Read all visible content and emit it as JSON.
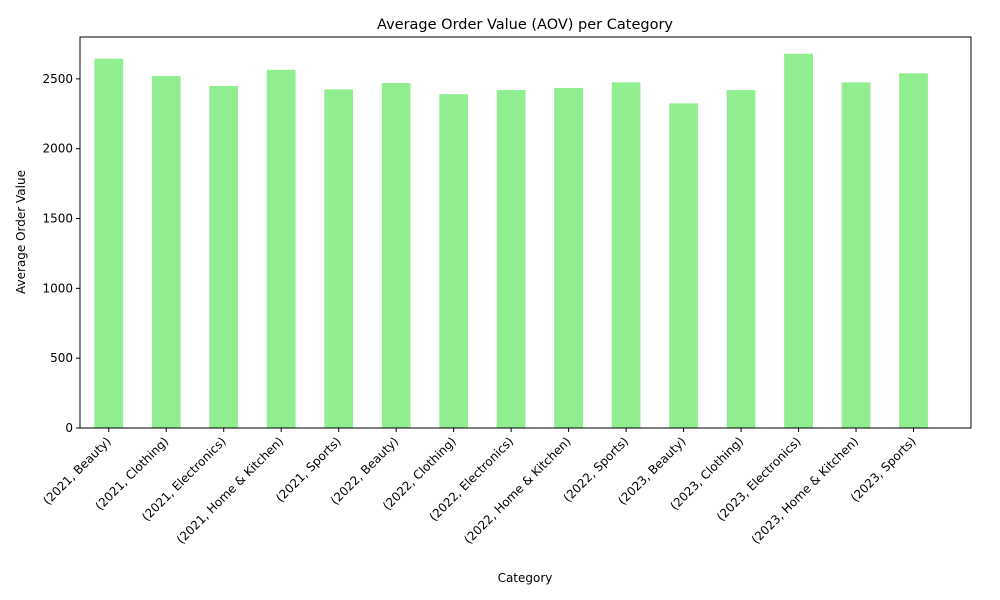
{
  "chart_data": {
    "type": "bar",
    "title": "Average Order Value (AOV) per Category",
    "xlabel": "Category",
    "ylabel": "Average Order Value",
    "categories": [
      "(2021, Beauty)",
      "(2021, Clothing)",
      "(2021, Electronics)",
      "(2021, Home & Kitchen)",
      "(2021, Sports)",
      "(2022, Beauty)",
      "(2022, Clothing)",
      "(2022, Electronics)",
      "(2022, Home & Kitchen)",
      "(2022, Sports)",
      "(2023, Beauty)",
      "(2023, Clothing)",
      "(2023, Electronics)",
      "(2023, Home & Kitchen)",
      "(2023, Sports)"
    ],
    "values": [
      2645,
      2520,
      2450,
      2565,
      2425,
      2470,
      2390,
      2420,
      2435,
      2475,
      2325,
      2420,
      2680,
      2475,
      2540
    ],
    "ylim": [
      0,
      2800
    ],
    "yticks": [
      0,
      500,
      1000,
      1500,
      2000,
      2500
    ],
    "bar_color": "#90ee90",
    "grid": false,
    "legend": "none"
  }
}
